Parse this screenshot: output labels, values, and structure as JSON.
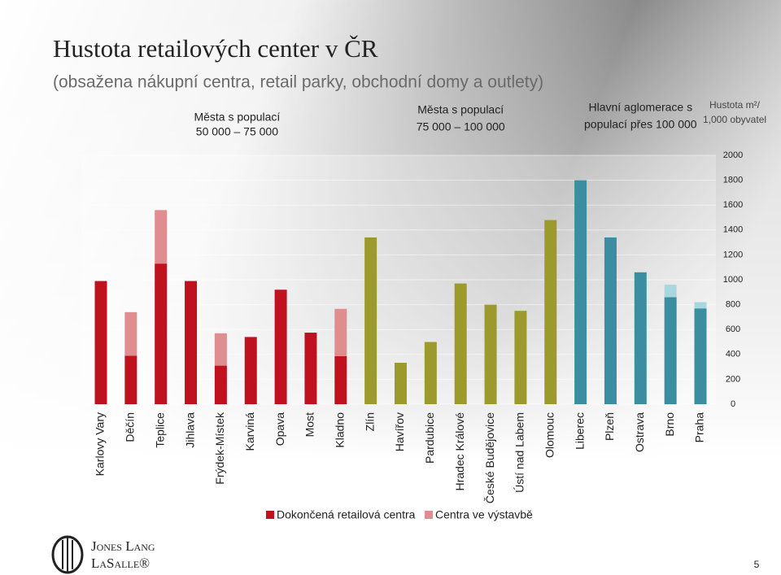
{
  "chart_data": {
    "type": "stacked-bar",
    "title": "Hustota retailových center v ČR",
    "subtitle": "(obsažena nákupní centra, retail parky, obchodní domy a outlety)",
    "y_axis_title": [
      "Hustota m²/",
      "1,000 obyvatel"
    ],
    "groups": [
      {
        "label": [
          "Města s populací",
          "50 000 – 75 000"
        ],
        "color": "#c0121e"
      },
      {
        "label": [
          "Města s populací",
          "75 000 – 100 000"
        ],
        "color": "#9c9a2c"
      },
      {
        "label": [
          "Hlavní aglomerace s",
          "populací přes 100 000"
        ],
        "color": "#3b8e9f"
      }
    ],
    "categories": [
      "Karlovy Vary",
      "Děčín",
      "Teplice",
      "Jihlava",
      "Frýdek-Místek",
      "Karviná",
      "Opava",
      "Most",
      "Kladno",
      "Zlín",
      "Havířov",
      "Pardubice",
      "Hradec Králové",
      "České Budějovice",
      "Ústí nad Labem",
      "Olomouc",
      "Liberec",
      "Plzeň",
      "Ostrava",
      "Brno",
      "Praha"
    ],
    "series": [
      {
        "name": "Dokončená retailová centra",
        "color": "#c0121e",
        "values": [
          990,
          390,
          1130,
          990,
          310,
          540,
          920,
          575,
          386,
          1340,
          333,
          500,
          970,
          800,
          750,
          1480,
          1800,
          1340,
          1060,
          860,
          770
        ],
        "colors": [
          "#c0121e",
          "#c0121e",
          "#c0121e",
          "#c0121e",
          "#c0121e",
          "#c0121e",
          "#c0121e",
          "#c0121e",
          "#c0121e",
          "#9c9a2c",
          "#9c9a2c",
          "#9c9a2c",
          "#9c9a2c",
          "#9c9a2c",
          "#9c9a2c",
          "#9c9a2c",
          "#3b8e9f",
          "#3b8e9f",
          "#3b8e9f",
          "#3b8e9f",
          "#3b8e9f"
        ]
      },
      {
        "name": "Centra ve výstavbě",
        "color": "#e08d8f",
        "values": [
          null,
          350,
          430,
          null,
          260,
          null,
          null,
          null,
          380,
          null,
          null,
          null,
          null,
          null,
          null,
          null,
          null,
          null,
          null,
          100,
          50
        ],
        "colors": [
          "#e08d8f",
          "#e08d8f",
          "#e08d8f",
          "#e08d8f",
          "#e08d8f",
          "#e08d8f",
          "#e08d8f",
          "#e08d8f",
          "#e08d8f",
          "#e08d8f",
          "#e08d8f",
          "#e08d8f",
          "#e08d8f",
          "#e08d8f",
          "#e08d8f",
          "#e08d8f",
          "#a9d7df",
          "#a9d7df",
          "#a9d7df",
          "#a9d7df",
          "#a9d7df"
        ]
      }
    ],
    "ylim": [
      0,
      2000
    ],
    "yticks": [
      0,
      200,
      400,
      600,
      800,
      1000,
      1200,
      1400,
      1600,
      1800,
      2000
    ],
    "grid": true,
    "legend": "bottom"
  },
  "logo": [
    "Jones Lang",
    "LaSalle®"
  ],
  "page_number": "5"
}
